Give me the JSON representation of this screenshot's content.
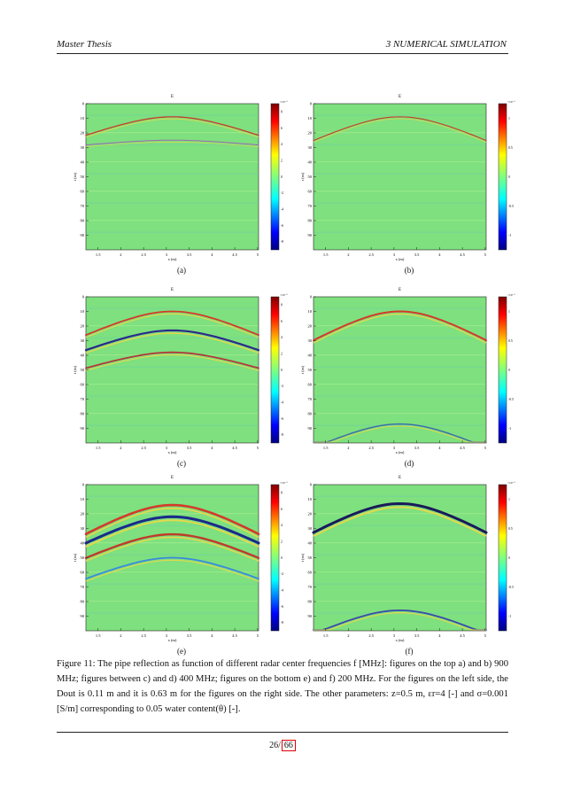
{
  "header": {
    "left": "Master Thesis",
    "right": "3   NUMERICAL SIMULATION"
  },
  "panels": [
    {
      "id": "a",
      "title": "E",
      "label": "(a)",
      "x_ticks": [
        "1.5",
        "2",
        "2.5",
        "3",
        "3.5",
        "4",
        "4.5",
        "5"
      ],
      "y_ticks": [
        "0",
        "10",
        "20",
        "30",
        "40",
        "50",
        "60",
        "70",
        "80",
        "90"
      ],
      "ylabel": "t (ns)",
      "xlabel": "x (m)",
      "cbar_exp": "×10⁻³",
      "cbar_ticks": [
        "8",
        "6",
        "4",
        "2",
        "0",
        "-2",
        "-4",
        "-6",
        "-8"
      ]
    },
    {
      "id": "b",
      "title": "E",
      "label": "(b)",
      "x_ticks": [
        "1.5",
        "2",
        "2.5",
        "3",
        "3.5",
        "4",
        "4.5",
        "5"
      ],
      "y_ticks": [
        "0",
        "10",
        "20",
        "30",
        "40",
        "50",
        "60",
        "70",
        "80",
        "90"
      ],
      "ylabel": "t (ns)",
      "xlabel": "x (m)",
      "cbar_exp": "×10⁻³",
      "cbar_ticks": [
        "1",
        "0.5",
        "0",
        "-0.5",
        "-1"
      ]
    },
    {
      "id": "c",
      "title": "E",
      "label": "(c)",
      "x_ticks": [
        "1.5",
        "2",
        "2.5",
        "3",
        "3.5",
        "4",
        "4.5",
        "5"
      ],
      "y_ticks": [
        "0",
        "10",
        "20",
        "30",
        "40",
        "50",
        "60",
        "70",
        "80",
        "90"
      ],
      "ylabel": "t (ns)",
      "xlabel": "x (m)",
      "cbar_exp": "×10⁻³",
      "cbar_ticks": [
        "8",
        "6",
        "4",
        "2",
        "0",
        "-2",
        "-4",
        "-6",
        "-8"
      ]
    },
    {
      "id": "d",
      "title": "E",
      "label": "(d)",
      "x_ticks": [
        "1.5",
        "2",
        "2.5",
        "3",
        "3.5",
        "4",
        "4.5",
        "5"
      ],
      "y_ticks": [
        "0",
        "10",
        "20",
        "30",
        "40",
        "50",
        "60",
        "70",
        "80",
        "90"
      ],
      "ylabel": "t (ns)",
      "xlabel": "x (m)",
      "cbar_exp": "×10⁻³",
      "cbar_ticks": [
        "1",
        "0.5",
        "0",
        "-0.5",
        "-1"
      ]
    },
    {
      "id": "e",
      "title": "E",
      "label": "(e)",
      "x_ticks": [
        "1.5",
        "2",
        "2.5",
        "3",
        "3.5",
        "4",
        "4.5",
        "5"
      ],
      "y_ticks": [
        "0",
        "10",
        "20",
        "30",
        "40",
        "50",
        "60",
        "70",
        "80",
        "90"
      ],
      "ylabel": "t (ns)",
      "xlabel": "x (m)",
      "cbar_exp": "×10⁻³",
      "cbar_ticks": [
        "8",
        "6",
        "4",
        "2",
        "0",
        "-2",
        "-4",
        "-6",
        "-8"
      ]
    },
    {
      "id": "f",
      "title": "E",
      "label": "(f)",
      "x_ticks": [
        "1.5",
        "2",
        "2.5",
        "3",
        "3.5",
        "4",
        "4.5",
        "5"
      ],
      "y_ticks": [
        "0",
        "10",
        "20",
        "30",
        "40",
        "50",
        "60",
        "70",
        "80",
        "90"
      ],
      "ylabel": "t (ns)",
      "xlabel": "x (m)",
      "cbar_exp": "×10⁻³",
      "cbar_ticks": [
        "1",
        "0.5",
        "0",
        "-0.5",
        "-1"
      ]
    }
  ],
  "caption": "Figure 11: The pipe reflection as function of different radar center frequencies f [MHz]: figures on the top a) and b) 900 MHz; figures between c) and d) 400 MHz; figures on the bottom e) and f) 200 MHz. For the figures on the left side, the Dout is 0.11 m and it is 0.63 m for the figures on the right side. The other parameters: z=0.5 m, εr=4 [-] and σ=0.001 [S/m] corresponding to 0.05 water content(θ) [-].",
  "page": {
    "current": "26/",
    "total": "66"
  },
  "colors": {
    "background_field": "#7ee07e",
    "accent_red": "#e00000"
  }
}
